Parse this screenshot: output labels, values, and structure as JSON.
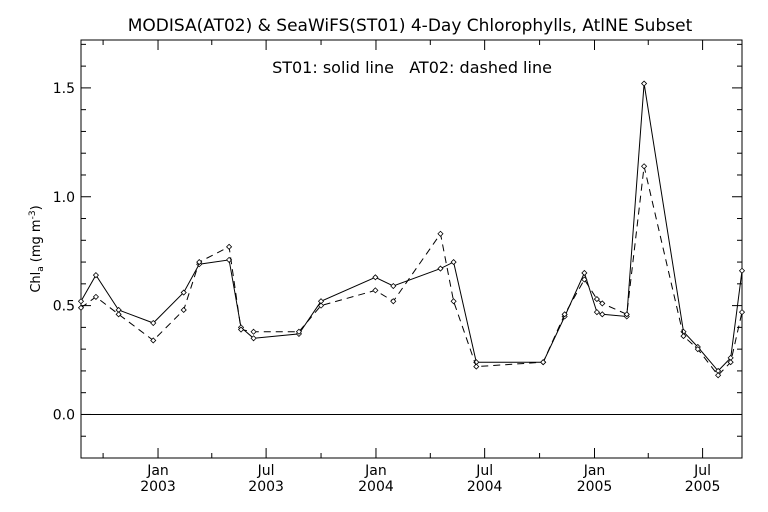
{
  "chart_data": {
    "type": "line",
    "title": "MODISA(AT02) & SeaWiFS(ST01) 4-Day Chlorophylls, AtlNE Subset",
    "annotation": "ST01: solid line   AT02: dashed line",
    "ylabel_main": "Chl",
    "ylabel_sub": "a",
    "ylabel_unit": "(mg m",
    "ylabel_exp": "-3",
    "ylabel_close": ")",
    "ylim": [
      -0.2,
      1.72
    ],
    "xlim": [
      "2002-08-25",
      "2005-09-05"
    ],
    "grid": false,
    "y_ticks": [
      {
        "value": 0.0,
        "label": "0.0"
      },
      {
        "value": 0.5,
        "label": "0.5"
      },
      {
        "value": 1.0,
        "label": "1.0"
      },
      {
        "value": 1.5,
        "label": "1.5"
      }
    ],
    "x_ticks": [
      {
        "date": "2003-01-01",
        "month": "Jan",
        "year": "2003"
      },
      {
        "date": "2003-07-01",
        "month": "Jul",
        "year": "2003"
      },
      {
        "date": "2004-01-01",
        "month": "Jan",
        "year": "2004"
      },
      {
        "date": "2004-07-01",
        "month": "Jul",
        "year": "2004"
      },
      {
        "date": "2005-01-01",
        "month": "Jan",
        "year": "2005"
      },
      {
        "date": "2005-07-01",
        "month": "Jul",
        "year": "2005"
      }
    ],
    "series": [
      {
        "name": "ST01",
        "style": "solid",
        "points": [
          {
            "x": "2002-08-25",
            "y": 0.52
          },
          {
            "x": "2002-09-19",
            "y": 0.64
          },
          {
            "x": "2002-10-27",
            "y": 0.48
          },
          {
            "x": "2002-12-24",
            "y": 0.42
          },
          {
            "x": "2003-02-13",
            "y": 0.56
          },
          {
            "x": "2003-03-11",
            "y": 0.69
          },
          {
            "x": "2003-04-30",
            "y": 0.71
          },
          {
            "x": "2003-05-20",
            "y": 0.4
          },
          {
            "x": "2003-06-10",
            "y": 0.35
          },
          {
            "x": "2003-08-25",
            "y": 0.37
          },
          {
            "x": "2003-10-01",
            "y": 0.52
          },
          {
            "x": "2003-12-31",
            "y": 0.63
          },
          {
            "x": "2004-01-30",
            "y": 0.59
          },
          {
            "x": "2004-04-18",
            "y": 0.67
          },
          {
            "x": "2004-05-10",
            "y": 0.7
          },
          {
            "x": "2004-06-17",
            "y": 0.24
          },
          {
            "x": "2004-10-07",
            "y": 0.24
          },
          {
            "x": "2004-11-12",
            "y": 0.45
          },
          {
            "x": "2004-12-15",
            "y": 0.65
          },
          {
            "x": "2005-01-05",
            "y": 0.47
          },
          {
            "x": "2005-01-14",
            "y": 0.46
          },
          {
            "x": "2005-02-24",
            "y": 0.45
          },
          {
            "x": "2005-03-25",
            "y": 1.52
          },
          {
            "x": "2005-05-30",
            "y": 0.38
          },
          {
            "x": "2005-06-23",
            "y": 0.31
          },
          {
            "x": "2005-07-27",
            "y": 0.2
          },
          {
            "x": "2005-08-17",
            "y": 0.26
          },
          {
            "x": "2005-09-05",
            "y": 0.66
          }
        ]
      },
      {
        "name": "AT02",
        "style": "dashed",
        "points": [
          {
            "x": "2002-08-25",
            "y": 0.49
          },
          {
            "x": "2002-09-19",
            "y": 0.54
          },
          {
            "x": "2002-10-27",
            "y": 0.46
          },
          {
            "x": "2002-12-24",
            "y": 0.34
          },
          {
            "x": "2003-02-13",
            "y": 0.48
          },
          {
            "x": "2003-03-11",
            "y": 0.7
          },
          {
            "x": "2003-04-30",
            "y": 0.77
          },
          {
            "x": "2003-05-20",
            "y": 0.39
          },
          {
            "x": "2003-06-10",
            "y": 0.38
          },
          {
            "x": "2003-08-25",
            "y": 0.38
          },
          {
            "x": "2003-10-01",
            "y": 0.5
          },
          {
            "x": "2003-12-31",
            "y": 0.57
          },
          {
            "x": "2004-01-30",
            "y": 0.52
          },
          {
            "x": "2004-04-18",
            "y": 0.83
          },
          {
            "x": "2004-05-10",
            "y": 0.52
          },
          {
            "x": "2004-06-17",
            "y": 0.22
          },
          {
            "x": "2004-10-07",
            "y": 0.24
          },
          {
            "x": "2004-11-12",
            "y": 0.46
          },
          {
            "x": "2004-12-15",
            "y": 0.62
          },
          {
            "x": "2005-01-05",
            "y": 0.53
          },
          {
            "x": "2005-01-14",
            "y": 0.51
          },
          {
            "x": "2005-02-24",
            "y": 0.46
          },
          {
            "x": "2005-03-25",
            "y": 1.14
          },
          {
            "x": "2005-05-30",
            "y": 0.36
          },
          {
            "x": "2005-06-23",
            "y": 0.3
          },
          {
            "x": "2005-07-27",
            "y": 0.18
          },
          {
            "x": "2005-08-17",
            "y": 0.24
          },
          {
            "x": "2005-09-05",
            "y": 0.47
          }
        ]
      }
    ]
  }
}
